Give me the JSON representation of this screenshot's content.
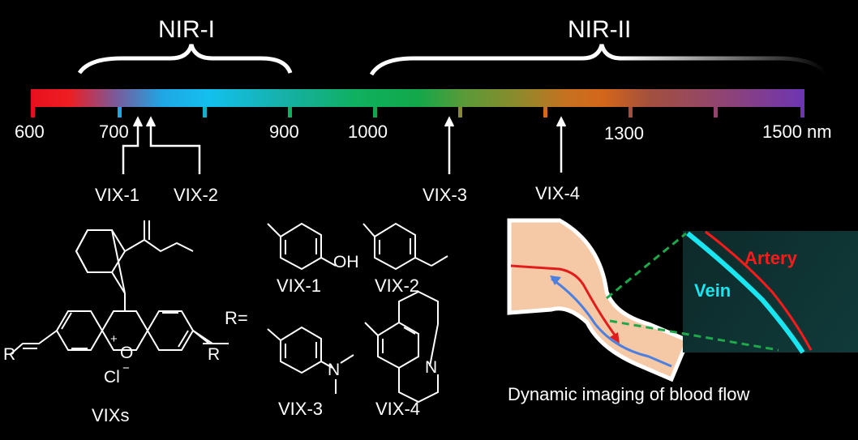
{
  "bands": {
    "nir1": "NIR-I",
    "nir2": "NIR-II"
  },
  "axis": {
    "ticks": [
      "600",
      "700",
      "900",
      "1000",
      "1300",
      "1500 nm"
    ]
  },
  "markers": {
    "vix1": "VIX-1",
    "vix2": "VIX-2",
    "vix3": "VIX-3",
    "vix4": "VIX-4"
  },
  "structure": {
    "r_left": "R",
    "r_right": "R",
    "o_plus": "O",
    "plus": "+",
    "chloride": "Cl",
    "chloride_charge": "−",
    "core_name": "VIXs",
    "r_equals": "R=",
    "oh": "OH",
    "n": "N",
    "sub1": "VIX-1",
    "sub2": "VIX-2",
    "sub3": "VIX-3",
    "sub4": "VIX-4"
  },
  "imaging": {
    "artery": "Artery",
    "vein": "Vein",
    "caption": "Dynamic imaging of blood flow"
  },
  "colors": {
    "background": "#000000",
    "artery": "#ff1a1a",
    "vein": "#19e6f0",
    "tissue": "#f5c9a6",
    "guide": "#1fa84a"
  }
}
